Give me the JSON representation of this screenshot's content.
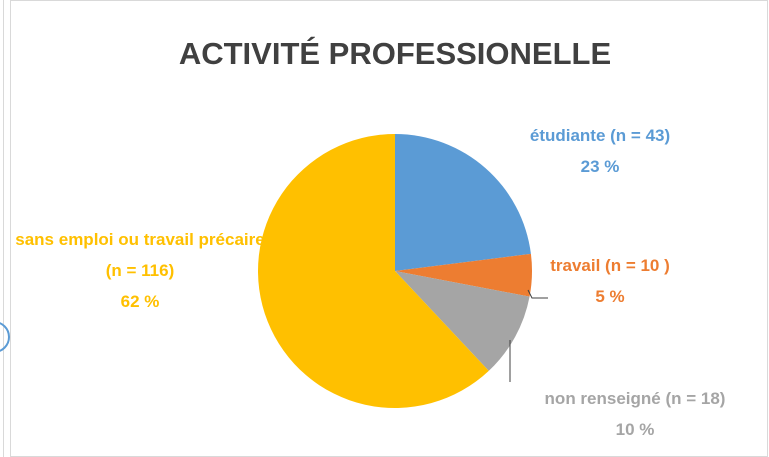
{
  "chart_data": {
    "type": "pie",
    "title": "ACTIVITÉ PROFESSIONELLE",
    "categories": [
      "étudiante (n = 43)",
      "travail (n = 10 )",
      "non renseigné (n = 18)",
      "sans emploi ou travail précaire (n = 116)"
    ],
    "values": [
      23,
      5,
      10,
      62
    ],
    "value_labels": [
      "23 %",
      "5 %",
      "10 %",
      "62 %"
    ],
    "colors": [
      "#5b9bd5",
      "#ed7d31",
      "#a5a5a5",
      "#ffc000"
    ]
  }
}
